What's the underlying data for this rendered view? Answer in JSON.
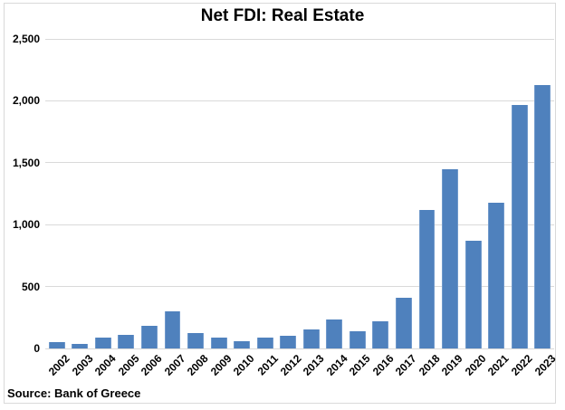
{
  "header": {
    "title": "Net FDI: Real Estate"
  },
  "footer": {
    "source_note": "Source: Bank of Greece"
  },
  "chart_data": {
    "type": "bar",
    "title": "Net FDI: Real Estate",
    "categories": [
      "2002",
      "2003",
      "2004",
      "2005",
      "2006",
      "2007",
      "2008",
      "2009",
      "2010",
      "2011",
      "2012",
      "2013",
      "2014",
      "2015",
      "2016",
      "2017",
      "2018",
      "2019",
      "2020",
      "2021",
      "2022",
      "2023"
    ],
    "values": [
      50,
      40,
      85,
      110,
      180,
      300,
      125,
      90,
      60,
      90,
      105,
      155,
      235,
      140,
      220,
      410,
      1120,
      1445,
      870,
      1175,
      1965,
      2130
    ],
    "xlabel": "",
    "ylabel": "",
    "ylim": [
      0,
      2500
    ],
    "ytick_interval": 500,
    "ytick_labels": [
      "0",
      "500",
      "1,000",
      "1,500",
      "2,000",
      "2,500"
    ],
    "grid": true,
    "legend": false,
    "annotations": [
      "Source: Bank of Greece"
    ],
    "colors": {
      "bar_fill": "#4f81bd",
      "bar_edge_highlight": "#7099cb",
      "gridline": "#d9d9d9",
      "text": "#000000",
      "background": "#ffffff",
      "frame_border": "#d9d9d9"
    }
  }
}
